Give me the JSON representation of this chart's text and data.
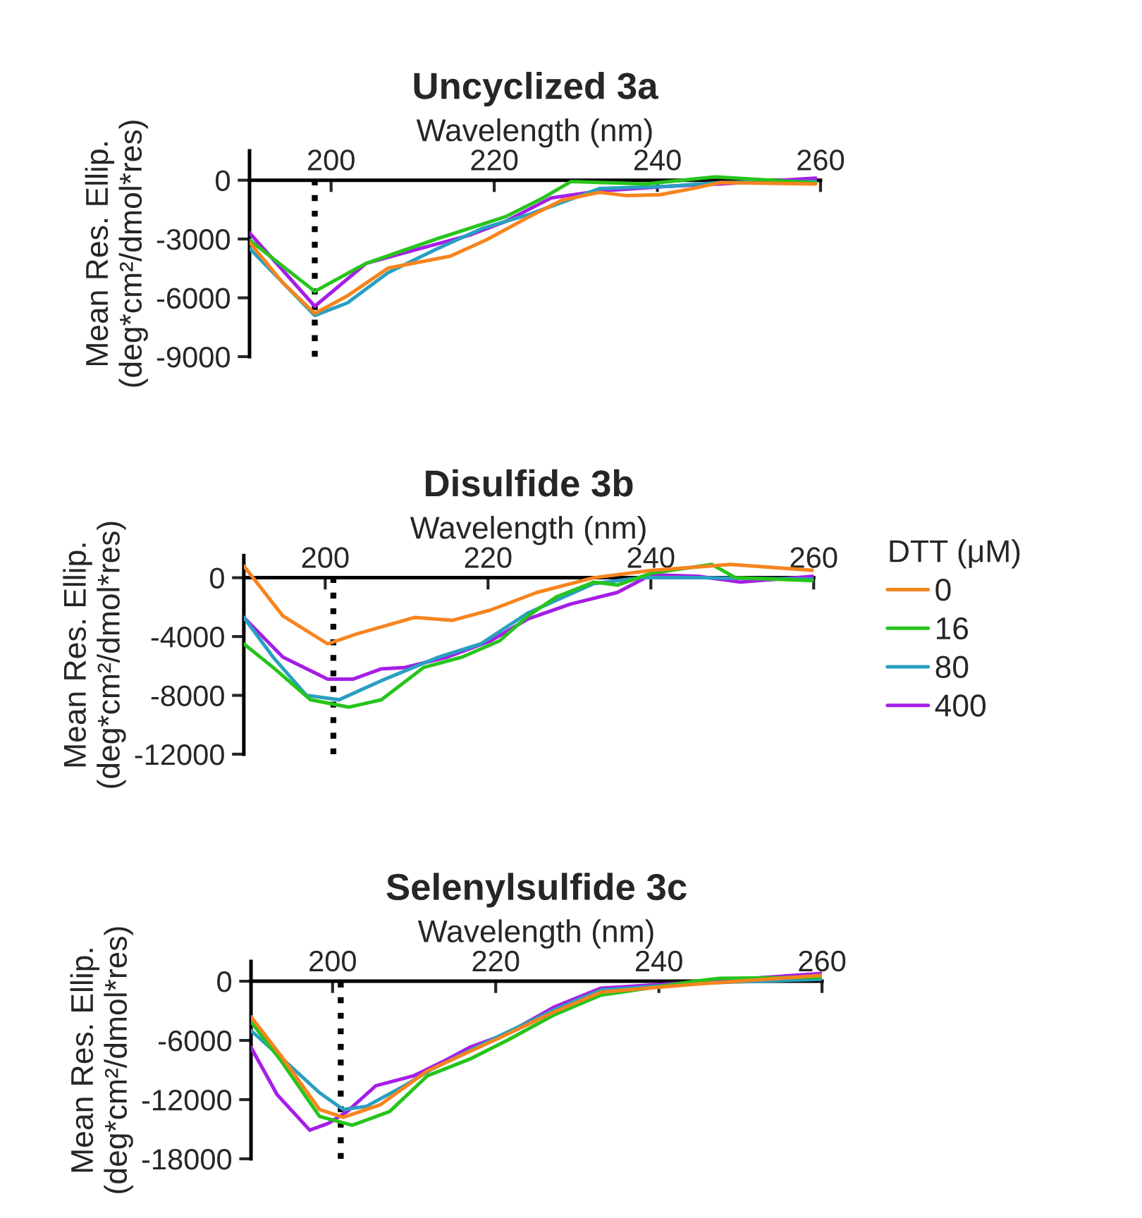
{
  "chart_data": [
    {
      "type": "line",
      "title": "Uncyclized 3a",
      "xlabel": "Wavelength (nm)",
      "ylabel": "Mean Res. Ellip.\n(deg*cm²/dmol*res)",
      "xlim": [
        190,
        260
      ],
      "xticks": [
        200,
        220,
        240,
        260
      ],
      "ylim": [
        -9000,
        1500
      ],
      "yticks": [
        0,
        -3000,
        -6000,
        -9000
      ],
      "legend": false,
      "grid": false,
      "line_style": "solid",
      "marker": "none",
      "ref_lines": [
        {
          "axis": "x",
          "value": 198,
          "line_style": "dotted",
          "color": "#000000"
        }
      ],
      "series": [
        {
          "color": "#f7841e",
          "x": [
            190,
            194,
            198,
            202,
            207,
            214.6,
            219,
            224.3,
            228.3,
            232.9,
            236.3,
            240.3,
            244.3,
            247.7,
            259.4
          ],
          "values": [
            -3170,
            -5190,
            -6800,
            -5900,
            -4480,
            -3880,
            -3050,
            -1860,
            -1020,
            -620,
            -790,
            -740,
            -430,
            -120,
            -190
          ]
        },
        {
          "color": "#27c41c",
          "x": [
            190,
            198,
            204.3,
            212.9,
            221.4,
            226,
            229.4,
            238.6,
            247,
            259.4
          ],
          "values": [
            -3050,
            -5670,
            -4240,
            -3000,
            -1860,
            -900,
            -70,
            -190,
            170,
            -140
          ]
        },
        {
          "color": "#2a9fc1",
          "x": [
            190,
            198,
            202,
            207,
            212.9,
            218.6,
            224.3,
            232.9,
            241.4,
            247.7,
            259.4
          ],
          "values": [
            -3480,
            -6900,
            -6260,
            -4710,
            -3520,
            -2450,
            -1740,
            -430,
            -310,
            -120,
            -70
          ]
        },
        {
          "color": "#a51ee6",
          "x": [
            190,
            198,
            204.3,
            211.7,
            216.9,
            221.4,
            227,
            232.9,
            241.4,
            247.7,
            259.4
          ],
          "values": [
            -2690,
            -6430,
            -4240,
            -3400,
            -2810,
            -2100,
            -900,
            -550,
            -310,
            -190,
            100
          ]
        }
      ]
    },
    {
      "type": "line",
      "title": "Disulfide 3b",
      "xlabel": "Wavelength (nm)",
      "ylabel": "Mean Res. Ellip.\n(deg*cm²/dmol*res)",
      "xlim": [
        190,
        260
      ],
      "xticks": [
        200,
        220,
        240,
        260
      ],
      "ylim": [
        -12000,
        1500
      ],
      "yticks": [
        0,
        -4000,
        -8000,
        -12000
      ],
      "legend": "right",
      "legend_title": "DTT (μM)",
      "grid": false,
      "line_style": "solid",
      "marker": "none",
      "ref_lines": [
        {
          "axis": "x",
          "value": 201,
          "line_style": "dotted",
          "color": "#000000"
        }
      ],
      "series": [
        {
          "name": "0",
          "color": "#f7841e",
          "x": [
            190,
            194.8,
            200.3,
            204,
            211,
            215.6,
            220.3,
            226,
            233,
            240,
            249.8,
            260
          ],
          "values": [
            800,
            -2600,
            -4500,
            -3800,
            -2700,
            -2900,
            -2200,
            -1000,
            0,
            500,
            900,
            500
          ]
        },
        {
          "name": "16",
          "color": "#27c41c",
          "x": [
            190,
            193.6,
            198.2,
            202.9,
            206.9,
            212.1,
            216.8,
            221.4,
            224.9,
            228.4,
            233,
            235.9,
            240,
            247.5,
            250.4,
            260
          ],
          "values": [
            -4500,
            -6100,
            -8300,
            -8800,
            -8300,
            -6100,
            -5400,
            -4300,
            -2600,
            -1300,
            -300,
            -500,
            300,
            900,
            0,
            -200
          ]
        },
        {
          "name": "80",
          "color": "#2a9fc1",
          "x": [
            190,
            193.6,
            197.7,
            201.7,
            206.9,
            213.9,
            219.1,
            224.9,
            233,
            238.8,
            245.8,
            260
          ],
          "values": [
            -2700,
            -5400,
            -8000,
            -8300,
            -7000,
            -5400,
            -4500,
            -2400,
            -400,
            0,
            0,
            -100
          ]
        },
        {
          "name": "400",
          "color": "#a51ee6",
          "x": [
            190,
            194.8,
            200.3,
            203.4,
            206.9,
            209.8,
            215,
            220.3,
            224.9,
            230.1,
            235.9,
            240,
            245.8,
            251,
            260
          ],
          "values": [
            -2700,
            -5400,
            -6900,
            -6900,
            -6200,
            -6100,
            -5400,
            -4300,
            -2800,
            -1800,
            -1000,
            200,
            100,
            -300,
            100
          ]
        }
      ]
    },
    {
      "type": "line",
      "title": "Selenylsulfide 3c",
      "xlabel": "Wavelength (nm)",
      "ylabel": "Mean Res. Ellip.\n(deg*cm²/dmol*res)",
      "xlim": [
        190,
        260
      ],
      "xticks": [
        200,
        220,
        240,
        260
      ],
      "ylim": [
        -18000,
        2000
      ],
      "yticks": [
        0,
        -6000,
        -12000,
        -18000
      ],
      "legend": false,
      "grid": false,
      "line_style": "solid",
      "marker": "none",
      "ref_lines": [
        {
          "axis": "x",
          "value": 201,
          "line_style": "dotted",
          "color": "#000000"
        }
      ],
      "series": [
        {
          "color": "#f7841e",
          "x": [
            190,
            193.8,
            198.4,
            201.3,
            205.9,
            211.6,
            220.3,
            227.2,
            232.9,
            244.5,
            260
          ],
          "values": [
            -3600,
            -7700,
            -13000,
            -13800,
            -12500,
            -9100,
            -5800,
            -3100,
            -1100,
            -300,
            600
          ]
        },
        {
          "color": "#27c41c",
          "x": [
            190,
            193.8,
            198.4,
            202.4,
            207,
            211.6,
            216.8,
            221.4,
            227.2,
            232.9,
            244.5,
            247.4,
            260
          ],
          "values": [
            -4100,
            -8200,
            -13700,
            -14600,
            -13200,
            -9600,
            -7900,
            -6000,
            -3400,
            -1400,
            0,
            300,
            400
          ]
        },
        {
          "color": "#2a9fc1",
          "x": [
            190,
            194.3,
            198.4,
            201.3,
            204.1,
            208.8,
            212.2,
            220.3,
            227.2,
            232.9,
            244.5,
            260
          ],
          "values": [
            -5000,
            -8200,
            -11300,
            -13000,
            -12700,
            -10600,
            -8900,
            -5600,
            -2900,
            -900,
            -200,
            200
          ]
        },
        {
          "color": "#a51ee6",
          "x": [
            190,
            193.2,
            197.2,
            199.5,
            201.8,
            205.3,
            209.9,
            213.4,
            216.8,
            221.4,
            227.2,
            232.9,
            244.5,
            260
          ],
          "values": [
            -6700,
            -11500,
            -15100,
            -14400,
            -13200,
            -10600,
            -9600,
            -8200,
            -6700,
            -5300,
            -2600,
            -700,
            -100,
            800
          ]
        }
      ]
    }
  ]
}
